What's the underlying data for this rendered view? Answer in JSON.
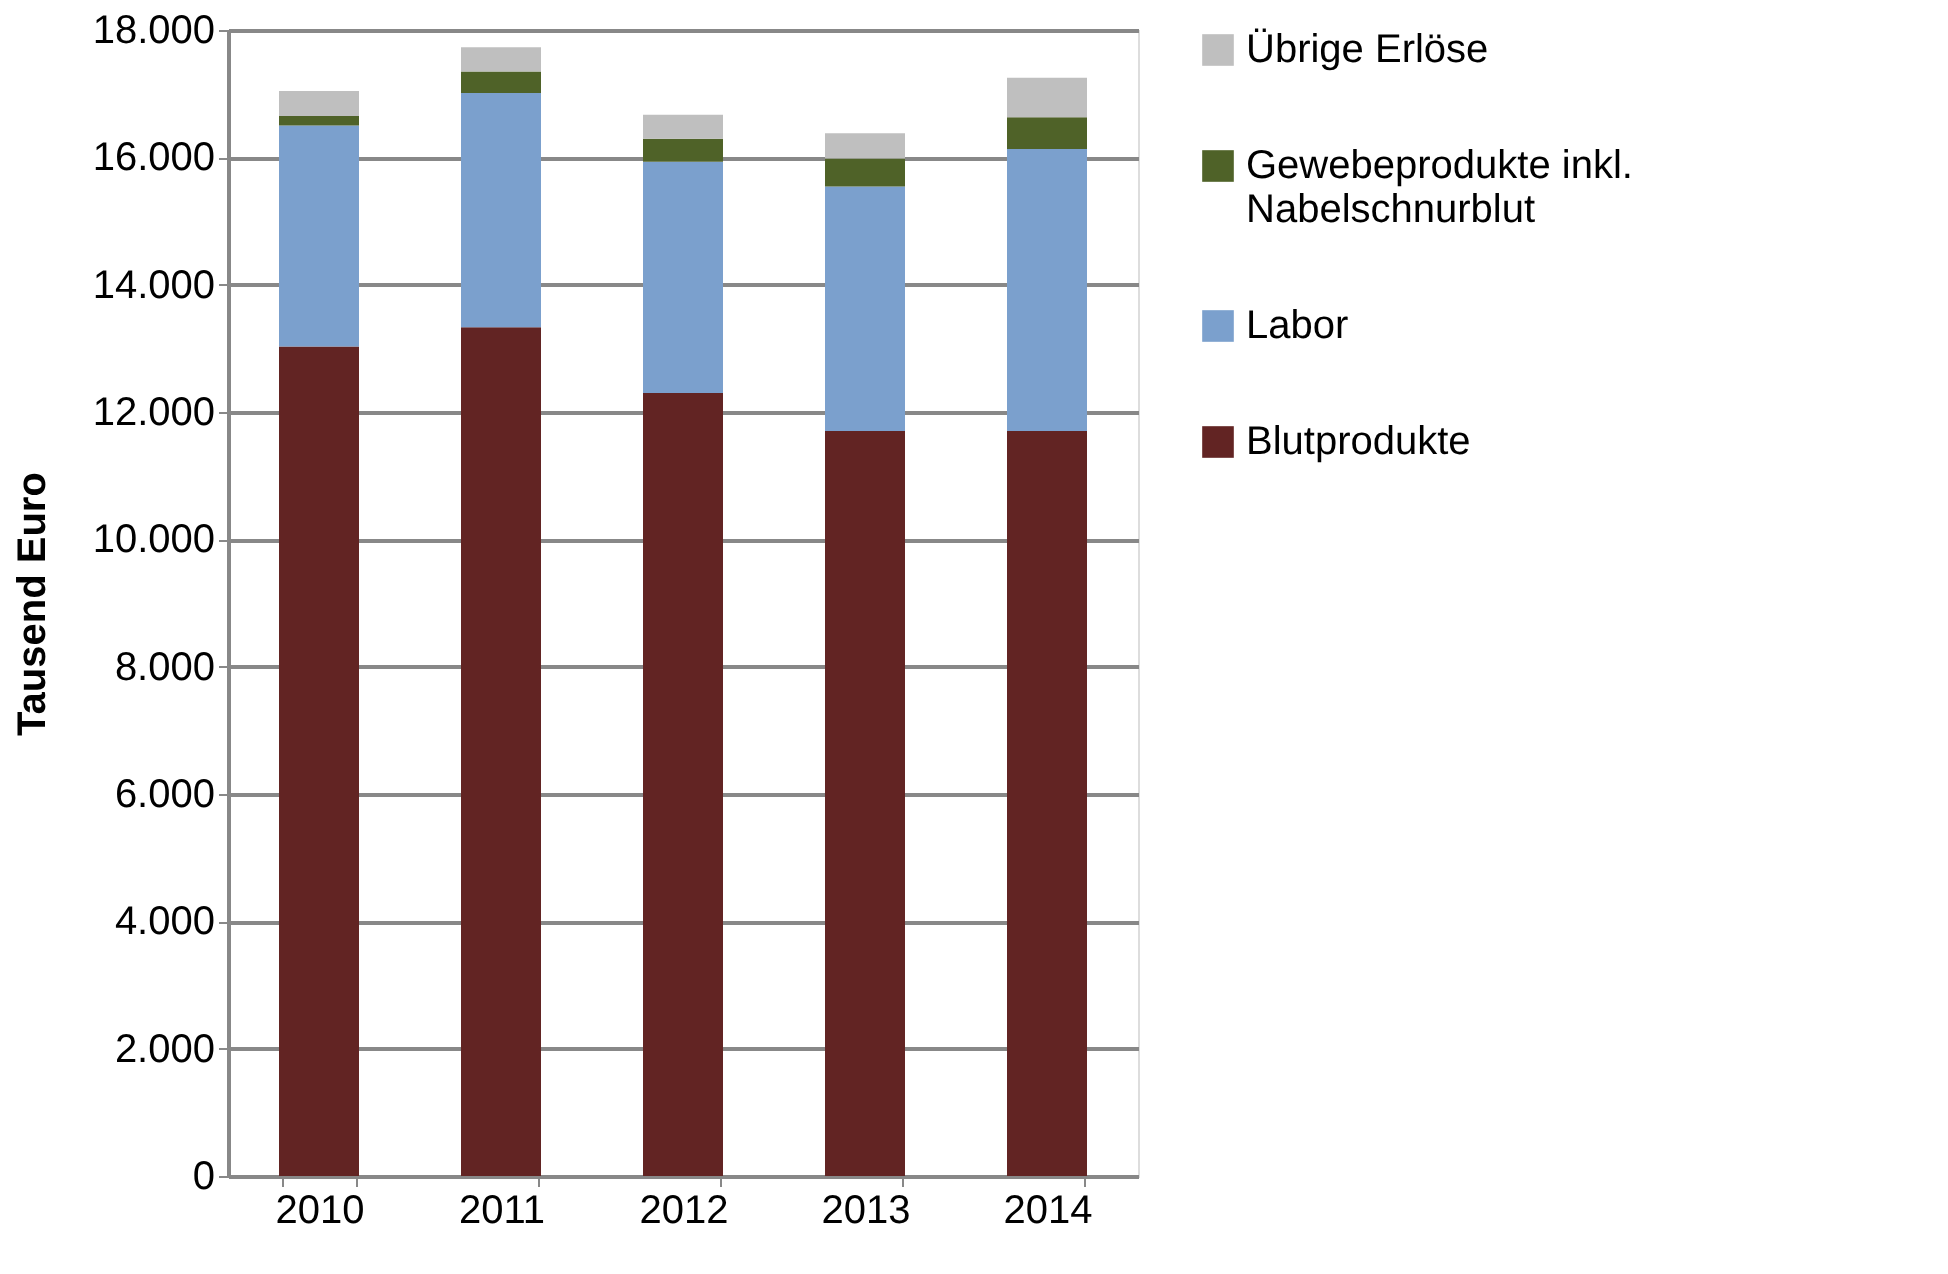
{
  "chart_data": {
    "type": "bar",
    "stacked": true,
    "ylabel": "Tausend Euro",
    "categories": [
      "2010",
      "2011",
      "2012",
      "2013",
      "2014"
    ],
    "series": [
      {
        "name": "Blutprodukte",
        "color": "#622423",
        "values": [
          13030,
          13330,
          12300,
          11700,
          11700
        ]
      },
      {
        "name": "Labor",
        "color": "#7ba0cd",
        "values": [
          3470,
          3680,
          3630,
          3840,
          4430
        ]
      },
      {
        "name": "Gewebeprodukte inkl. Nabelschnurblut",
        "color": "#4f6228",
        "values": [
          150,
          340,
          360,
          440,
          500
        ]
      },
      {
        "name": "Übrige Erlöse",
        "color": "#bfbfbf",
        "values": [
          390,
          380,
          380,
          400,
          620
        ]
      }
    ],
    "ylim": [
      0,
      18000
    ],
    "yticks": [
      0,
      {
        "value": 2000,
        "label": "2.000"
      },
      {
        "value": 4000,
        "label": "4.000"
      },
      {
        "value": 6000,
        "label": "6.000"
      },
      {
        "value": 8000,
        "label": "8.000"
      },
      {
        "value": 10000,
        "label": "10.000"
      },
      {
        "value": 12000,
        "label": "12.000"
      },
      {
        "value": 14000,
        "label": "14.000"
      },
      {
        "value": 16000,
        "label": "16.000"
      },
      {
        "value": 18000,
        "label": "18.000"
      }
    ],
    "grid": "y",
    "legend": "right"
  }
}
